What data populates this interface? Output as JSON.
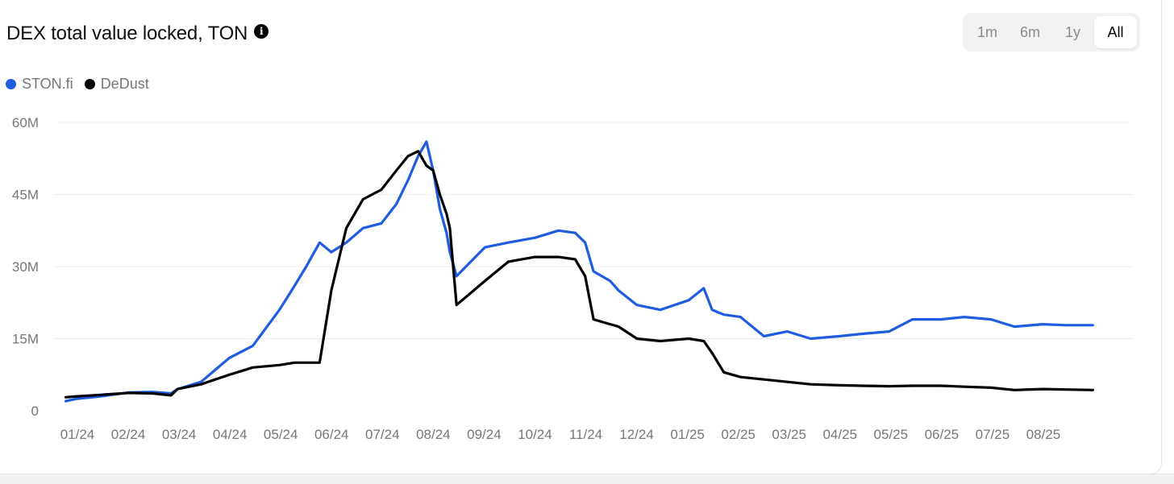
{
  "header": {
    "title": "DEX total value locked, TON",
    "info_icon": "info-icon"
  },
  "range_selector": {
    "options": [
      "1m",
      "6m",
      "1y",
      "All"
    ],
    "selected": "All"
  },
  "colors": {
    "ston": "#1f5ce0",
    "dedust": "#000000",
    "grid": "#ececec"
  },
  "chart_data": {
    "type": "line",
    "title": "DEX total value locked, TON",
    "x_tick_labels": [
      "01/24",
      "02/24",
      "03/24",
      "04/24",
      "05/24",
      "06/24",
      "07/24",
      "08/24",
      "09/24",
      "10/24",
      "11/24",
      "12/24",
      "01/25",
      "02/25",
      "03/25",
      "04/25",
      "05/25",
      "06/25",
      "07/25",
      "08/25"
    ],
    "y_tick_labels": [
      "0",
      "15M",
      "30M",
      "45M",
      "60M"
    ],
    "ylim": [
      0,
      60000000
    ],
    "x": [
      "2023-12-25",
      "2024-01-01",
      "2024-01-15",
      "2024-02-01",
      "2024-02-15",
      "2024-02-26",
      "2024-03-01",
      "2024-03-15",
      "2024-04-01",
      "2024-04-15",
      "2024-05-01",
      "2024-05-10",
      "2024-05-17",
      "2024-05-25",
      "2024-06-01",
      "2024-06-10",
      "2024-06-20",
      "2024-07-01",
      "2024-07-10",
      "2024-07-17",
      "2024-07-23",
      "2024-07-28",
      "2024-08-01",
      "2024-08-05",
      "2024-08-09",
      "2024-08-11",
      "2024-08-15",
      "2024-09-01",
      "2024-09-15",
      "2024-10-01",
      "2024-10-15",
      "2024-10-25",
      "2024-10-31",
      "2024-11-05",
      "2024-11-15",
      "2024-11-20",
      "2024-12-01",
      "2024-12-15",
      "2025-01-01",
      "2025-01-10",
      "2025-01-15",
      "2025-01-22",
      "2025-02-01",
      "2025-02-15",
      "2025-03-01",
      "2025-03-15",
      "2025-04-01",
      "2025-04-15",
      "2025-05-01",
      "2025-05-15",
      "2025-06-01",
      "2025-06-15",
      "2025-07-01",
      "2025-07-15",
      "2025-08-01",
      "2025-08-15",
      "2025-08-31"
    ],
    "series": [
      {
        "name": "STON.fi",
        "color": "#1f5ce0",
        "values": [
          2000000,
          2500000,
          3000000,
          3800000,
          3900000,
          3600000,
          4500000,
          6000000,
          11000000,
          13500000,
          21000000,
          26000000,
          30000000,
          35000000,
          33000000,
          35000000,
          38000000,
          39000000,
          43000000,
          48000000,
          53000000,
          56000000,
          50000000,
          42000000,
          37000000,
          33000000,
          28000000,
          34000000,
          35000000,
          36000000,
          37500000,
          37000000,
          35000000,
          29000000,
          27000000,
          25000000,
          22000000,
          21000000,
          23000000,
          25500000,
          21000000,
          20000000,
          19500000,
          15500000,
          16500000,
          15000000,
          15500000,
          16000000,
          16500000,
          19000000,
          19000000,
          19500000,
          19000000,
          17500000,
          18000000,
          17800000,
          17800000
        ]
      },
      {
        "name": "DeDust",
        "color": "#000000",
        "values": [
          2800000,
          3000000,
          3300000,
          3700000,
          3600000,
          3200000,
          4500000,
          5500000,
          7500000,
          9000000,
          9500000,
          10000000,
          10000000,
          10000000,
          25000000,
          38000000,
          44000000,
          46000000,
          50000000,
          53000000,
          54000000,
          51000000,
          50000000,
          45000000,
          41000000,
          38000000,
          22000000,
          27000000,
          31000000,
          32000000,
          32000000,
          31500000,
          28000000,
          19000000,
          18000000,
          17500000,
          15000000,
          14500000,
          15000000,
          14500000,
          12000000,
          8000000,
          7000000,
          6500000,
          6000000,
          5500000,
          5300000,
          5200000,
          5100000,
          5200000,
          5200000,
          5000000,
          4800000,
          4300000,
          4500000,
          4400000,
          4300000
        ]
      }
    ],
    "legend": "top-left",
    "grid": true
  }
}
